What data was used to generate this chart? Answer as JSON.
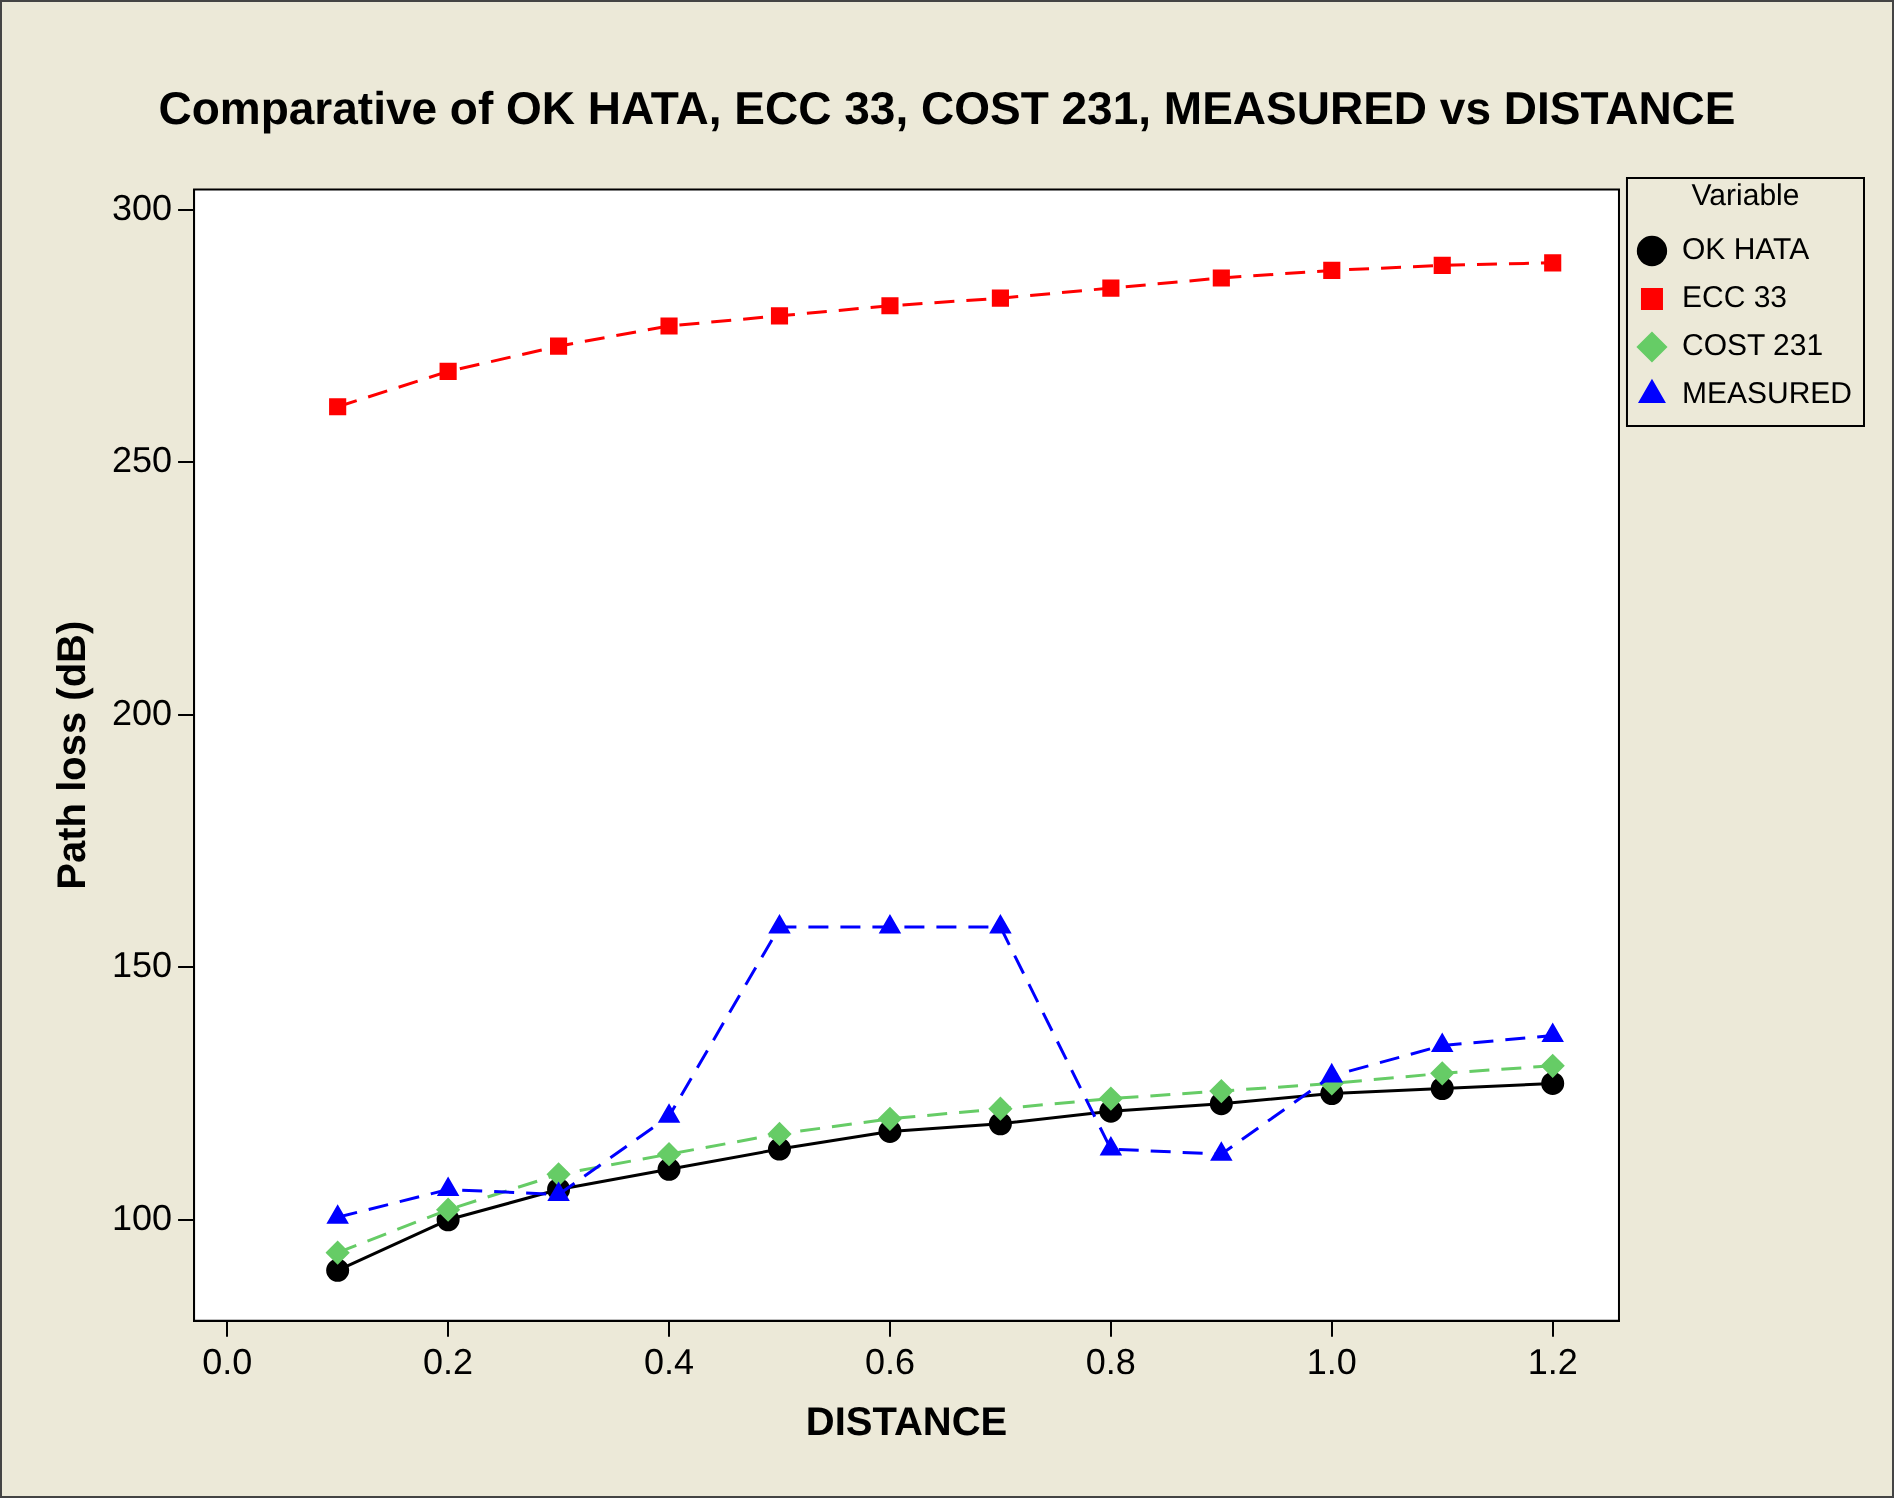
{
  "chart_data": {
    "type": "line",
    "title": "Comparative  of OK HATA, ECC 33, COST 231, MEASURED vs DISTANCE",
    "xlabel": "DISTANCE",
    "ylabel": "Path loss (dB)",
    "legend_title": "Variable",
    "legend": "right",
    "grid": false,
    "x": [
      0.1,
      0.2,
      0.3,
      0.4,
      0.5,
      0.6,
      0.7,
      0.8,
      0.9,
      1.0,
      1.1,
      1.2
    ],
    "xlim": [
      -0.03,
      1.26
    ],
    "xticks": [
      {
        "value": 0,
        "label": "0.0"
      },
      0.2,
      0.4,
      0.6,
      0.8,
      {
        "value": 1,
        "label": "1.0"
      },
      1.2
    ],
    "ylim": [
      80,
      304
    ],
    "yticks": [
      100,
      150,
      200,
      250,
      300
    ],
    "series": [
      {
        "name": "OK HATA",
        "color": "#000000",
        "marker": "circle",
        "line_style": "solid",
        "values": [
          90,
          100,
          106,
          110,
          114,
          117.5,
          119,
          121.5,
          123,
          125,
          126,
          127
        ]
      },
      {
        "name": "ECC 33",
        "color": "#ff0000",
        "marker": "square",
        "line_style": "dashed",
        "values": [
          261,
          268,
          273,
          277,
          279,
          281,
          282.5,
          284.5,
          286.5,
          288,
          289,
          289.5
        ]
      },
      {
        "name": "COST 231",
        "color": "#66cc66",
        "marker": "diamond",
        "line_style": "dashed",
        "values": [
          93.5,
          102,
          109,
          113,
          117,
          120,
          122,
          124,
          125.5,
          127,
          129,
          130.5
        ]
      },
      {
        "name": "MEASURED",
        "color": "#0000ff",
        "marker": "triangle",
        "line_style": "dashed",
        "values": [
          100.5,
          106,
          105,
          120.5,
          158,
          158,
          158,
          114,
          113,
          128.5,
          134.5,
          136.5
        ]
      }
    ]
  }
}
